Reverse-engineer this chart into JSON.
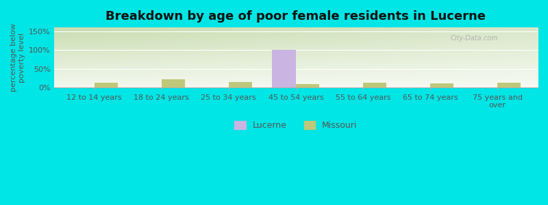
{
  "title": "Breakdown by age of poor female residents in Lucerne",
  "categories": [
    "12 to 14 years",
    "18 to 24 years",
    "25 to 34 years",
    "45 to 54 years",
    "55 to 64 years",
    "65 to 74 years",
    "75 years and\nover"
  ],
  "lucerne_values": [
    0,
    0,
    0,
    100,
    0,
    0,
    0
  ],
  "missouri_values": [
    13,
    22,
    15,
    10,
    13,
    12,
    14
  ],
  "lucerne_color": "#c9b4e2",
  "missouri_color": "#bfc87a",
  "ylabel": "percentage below\npoverty level",
  "ylim": [
    0,
    160
  ],
  "yticks": [
    0,
    50,
    100,
    150
  ],
  "ytick_labels": [
    "0%",
    "50%",
    "100%",
    "150%"
  ],
  "background_color": "#00e5e5",
  "grad_topleft": "#c8ddb0",
  "grad_bottomright": "#f4f8ef",
  "bar_width": 0.35,
  "title_fontsize": 13,
  "axis_fontsize": 8,
  "watermark": "City-Data.com",
  "grid_color": "#e0e8d0",
  "spine_color": "#aaaaaa"
}
